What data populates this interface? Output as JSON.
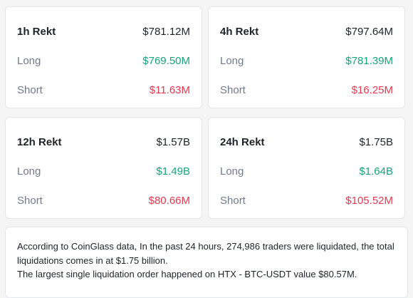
{
  "cards": [
    {
      "id": "1h",
      "period_label": "1h Rekt",
      "total": "$781.12M",
      "long_label": "Long",
      "long_value": "$769.50M",
      "short_label": "Short",
      "short_value": "$11.63M"
    },
    {
      "id": "4h",
      "period_label": "4h Rekt",
      "total": "$797.64M",
      "long_label": "Long",
      "long_value": "$781.39M",
      "short_label": "Short",
      "short_value": "$16.25M"
    },
    {
      "id": "12h",
      "period_label": "12h Rekt",
      "total": "$1.57B",
      "long_label": "Long",
      "long_value": "$1.49B",
      "short_label": "Short",
      "short_value": "$80.66M"
    },
    {
      "id": "24h",
      "period_label": "24h Rekt",
      "total": "$1.75B",
      "long_label": "Long",
      "long_value": "$1.64B",
      "short_label": "Short",
      "short_value": "$105.52M"
    }
  ],
  "summary": {
    "line1": "According to CoinGlass data, In the past 24 hours, 274,986 traders were liquidated, the total liquidations comes in at $1.75 billion.",
    "line2": "The largest single liquidation order happened on HTX - BTC-USDT value $80.57M."
  },
  "colors": {
    "long": "#16a47a",
    "short": "#e8384f",
    "text": "#1e2329",
    "muted": "#707a8a",
    "card_border": "#e4e6ea",
    "background": "#f5f5f5"
  }
}
